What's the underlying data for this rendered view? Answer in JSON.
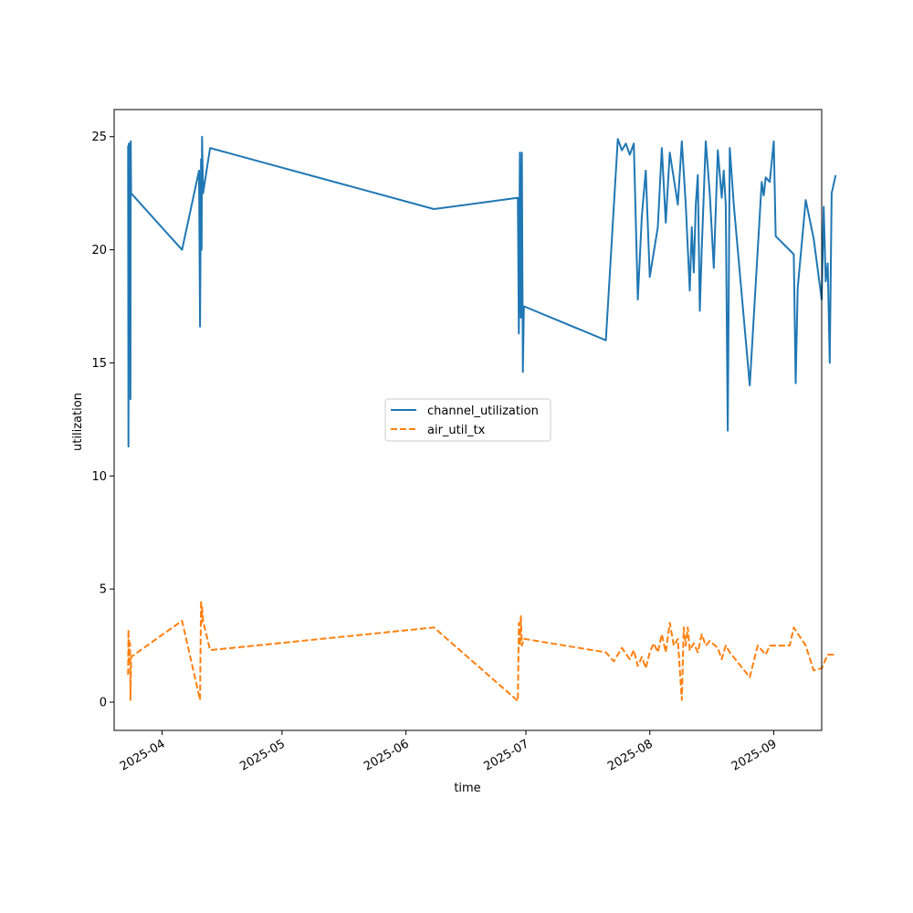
{
  "chart_data": {
    "type": "line",
    "title": "",
    "xlabel": "time",
    "ylabel": "utilization",
    "x_ticks": [
      "2025-04",
      "2025-05",
      "2025-06",
      "2025-07",
      "2025-08",
      "2025-09"
    ],
    "y_ticks": [
      0,
      5,
      10,
      15,
      20,
      25
    ],
    "xlim": [
      "2025-03-20",
      "2025-09-13"
    ],
    "ylim": [
      -1.25,
      26.2
    ],
    "grid": false,
    "legend_position": "center",
    "series": [
      {
        "name": "channel_utilization",
        "color": "#1f77b4",
        "dash": "solid",
        "points": [
          [
            "2025-03-23T12:00",
            24.6
          ],
          [
            "2025-03-23T14:00",
            11.3
          ],
          [
            "2025-03-23T16:00",
            24.7
          ],
          [
            "2025-03-23T18:00",
            16.5
          ],
          [
            "2025-03-23T20:00",
            24.6
          ],
          [
            "2025-03-24T00:00",
            22.0
          ],
          [
            "2025-03-24T01:00",
            24.7
          ],
          [
            "2025-03-24T02:00",
            13.4
          ],
          [
            "2025-03-24T04:00",
            24.8
          ],
          [
            "2025-03-24T06:00",
            22.5
          ],
          [
            "2025-04-06T00:00",
            20.0
          ],
          [
            "2025-04-10T06:00",
            23.5
          ],
          [
            "2025-04-10T12:00",
            16.6
          ],
          [
            "2025-04-10T18:00",
            24.0
          ],
          [
            "2025-04-10T21:00",
            20.0
          ],
          [
            "2025-04-11T00:00",
            25.0
          ],
          [
            "2025-04-11T06:00",
            22.5
          ],
          [
            "2025-04-13T00:00",
            24.5
          ],
          [
            "2025-06-08T00:00",
            21.8
          ],
          [
            "2025-06-29T00:00",
            22.3
          ],
          [
            "2025-06-29T06:00",
            16.3
          ],
          [
            "2025-06-29T12:00",
            24.3
          ],
          [
            "2025-06-29T18:00",
            17.0
          ],
          [
            "2025-06-30T00:00",
            24.3
          ],
          [
            "2025-06-30T06:00",
            14.6
          ],
          [
            "2025-06-30T12:00",
            17.5
          ],
          [
            "2025-07-21T00:00",
            16.0
          ],
          [
            "2025-07-24T00:00",
            24.9
          ],
          [
            "2025-07-25T00:00",
            24.4
          ],
          [
            "2025-07-26T00:00",
            24.7
          ],
          [
            "2025-07-27T00:00",
            24.2
          ],
          [
            "2025-07-28T00:00",
            24.7
          ],
          [
            "2025-07-29T00:00",
            17.8
          ],
          [
            "2025-07-30T00:00",
            21.5
          ],
          [
            "2025-07-31T00:00",
            23.5
          ],
          [
            "2025-08-01T00:00",
            18.8
          ],
          [
            "2025-08-03T00:00",
            21.0
          ],
          [
            "2025-08-04T00:00",
            24.5
          ],
          [
            "2025-08-05T00:00",
            21.2
          ],
          [
            "2025-08-06T00:00",
            24.3
          ],
          [
            "2025-08-08T00:00",
            22.0
          ],
          [
            "2025-08-09T00:00",
            24.8
          ],
          [
            "2025-08-10T00:00",
            22.0
          ],
          [
            "2025-08-11T00:00",
            18.2
          ],
          [
            "2025-08-11T12:00",
            21.0
          ],
          [
            "2025-08-12T00:00",
            19.0
          ],
          [
            "2025-08-12T12:00",
            22.0
          ],
          [
            "2025-08-13T00:00",
            23.3
          ],
          [
            "2025-08-13T12:00",
            17.3
          ],
          [
            "2025-08-14T00:00",
            20.0
          ],
          [
            "2025-08-15T00:00",
            24.8
          ],
          [
            "2025-08-16T00:00",
            22.5
          ],
          [
            "2025-08-17T00:00",
            19.2
          ],
          [
            "2025-08-18T00:00",
            24.4
          ],
          [
            "2025-08-19T00:00",
            22.3
          ],
          [
            "2025-08-19T12:00",
            23.5
          ],
          [
            "2025-08-20T00:00",
            22.0
          ],
          [
            "2025-08-20T12:00",
            12.0
          ],
          [
            "2025-08-21T00:00",
            24.5
          ],
          [
            "2025-08-22T00:00",
            22.0
          ],
          [
            "2025-08-26T00:00",
            14.0
          ],
          [
            "2025-08-29T00:00",
            23.0
          ],
          [
            "2025-08-29T12:00",
            22.4
          ],
          [
            "2025-08-30T00:00",
            23.2
          ],
          [
            "2025-08-31T00:00",
            23.0
          ],
          [
            "2025-09-01T00:00",
            24.8
          ],
          [
            "2025-09-01T12:00",
            20.6
          ],
          [
            "2025-09-06T00:00",
            19.8
          ],
          [
            "2025-09-06T12:00",
            14.1
          ],
          [
            "2025-09-07T00:00",
            18.3
          ],
          [
            "2025-09-09T00:00",
            22.2
          ],
          [
            "2025-09-11T00:00",
            20.5
          ],
          [
            "2025-09-13T00:00",
            17.8
          ],
          [
            "2025-09-13T12:00",
            21.9
          ],
          [
            "2025-09-14T00:00",
            18.6
          ],
          [
            "2025-09-14T12:00",
            19.4
          ],
          [
            "2025-09-15T00:00",
            15.0
          ],
          [
            "2025-09-15T12:00",
            22.5
          ],
          [
            "2025-09-16T12:00",
            23.3
          ]
        ]
      },
      {
        "name": "air_util_tx",
        "color": "#ff7f0e",
        "dash": "dashed",
        "points": [
          [
            "2025-03-23T12:00",
            1.2
          ],
          [
            "2025-03-23T14:00",
            3.2
          ],
          [
            "2025-03-23T16:00",
            1.8
          ],
          [
            "2025-03-23T18:00",
            2.8
          ],
          [
            "2025-03-23T20:00",
            2.0
          ],
          [
            "2025-03-24T00:00",
            2.6
          ],
          [
            "2025-03-24T02:00",
            0.1
          ],
          [
            "2025-03-24T06:00",
            2.0
          ],
          [
            "2025-04-06T00:00",
            3.6
          ],
          [
            "2025-04-10T12:00",
            0.1
          ],
          [
            "2025-04-10T18:00",
            4.5
          ],
          [
            "2025-04-10T21:00",
            3.5
          ],
          [
            "2025-04-11T00:00",
            4.2
          ],
          [
            "2025-04-11T06:00",
            3.6
          ],
          [
            "2025-04-13T00:00",
            2.3
          ],
          [
            "2025-06-08T00:00",
            3.3
          ],
          [
            "2025-06-29T00:00",
            0.05
          ],
          [
            "2025-06-29T06:00",
            3.5
          ],
          [
            "2025-06-29T12:00",
            2.5
          ],
          [
            "2025-06-29T18:00",
            3.8
          ],
          [
            "2025-06-30T00:00",
            2.5
          ],
          [
            "2025-06-30T12:00",
            2.8
          ],
          [
            "2025-07-21T00:00",
            2.2
          ],
          [
            "2025-07-23T00:00",
            1.8
          ],
          [
            "2025-07-25T00:00",
            2.4
          ],
          [
            "2025-07-27T00:00",
            1.9
          ],
          [
            "2025-07-28T00:00",
            2.3
          ],
          [
            "2025-07-29T00:00",
            1.6
          ],
          [
            "2025-07-30T00:00",
            2.0
          ],
          [
            "2025-07-31T00:00",
            1.5
          ],
          [
            "2025-08-01T00:00",
            2.2
          ],
          [
            "2025-08-02T00:00",
            2.6
          ],
          [
            "2025-08-03T00:00",
            2.2
          ],
          [
            "2025-08-04T00:00",
            3.0
          ],
          [
            "2025-08-05T00:00",
            2.2
          ],
          [
            "2025-08-06T00:00",
            3.5
          ],
          [
            "2025-08-07T00:00",
            2.5
          ],
          [
            "2025-08-08T00:00",
            2.8
          ],
          [
            "2025-08-09T00:00",
            0.1
          ],
          [
            "2025-08-09T12:00",
            3.3
          ],
          [
            "2025-08-10T00:00",
            2.5
          ],
          [
            "2025-08-10T12:00",
            3.3
          ],
          [
            "2025-08-11T00:00",
            2.3
          ],
          [
            "2025-08-12T00:00",
            2.6
          ],
          [
            "2025-08-13T00:00",
            2.2
          ],
          [
            "2025-08-14T00:00",
            3.0
          ],
          [
            "2025-08-15T00:00",
            2.5
          ],
          [
            "2025-08-16T00:00",
            2.7
          ],
          [
            "2025-08-18T00:00",
            2.4
          ],
          [
            "2025-08-19T00:00",
            1.9
          ],
          [
            "2025-08-20T00:00",
            2.5
          ],
          [
            "2025-08-21T00:00",
            2.2
          ],
          [
            "2025-08-26T00:00",
            1.1
          ],
          [
            "2025-08-28T00:00",
            2.5
          ],
          [
            "2025-08-30T00:00",
            2.1
          ],
          [
            "2025-08-31T00:00",
            2.5
          ],
          [
            "2025-09-05T00:00",
            2.5
          ],
          [
            "2025-09-06T00:00",
            3.3
          ],
          [
            "2025-09-09T00:00",
            2.5
          ],
          [
            "2025-09-11T00:00",
            1.4
          ],
          [
            "2025-09-13T00:00",
            1.5
          ],
          [
            "2025-09-14T12:00",
            2.1
          ],
          [
            "2025-09-16T12:00",
            2.1
          ]
        ]
      }
    ]
  }
}
